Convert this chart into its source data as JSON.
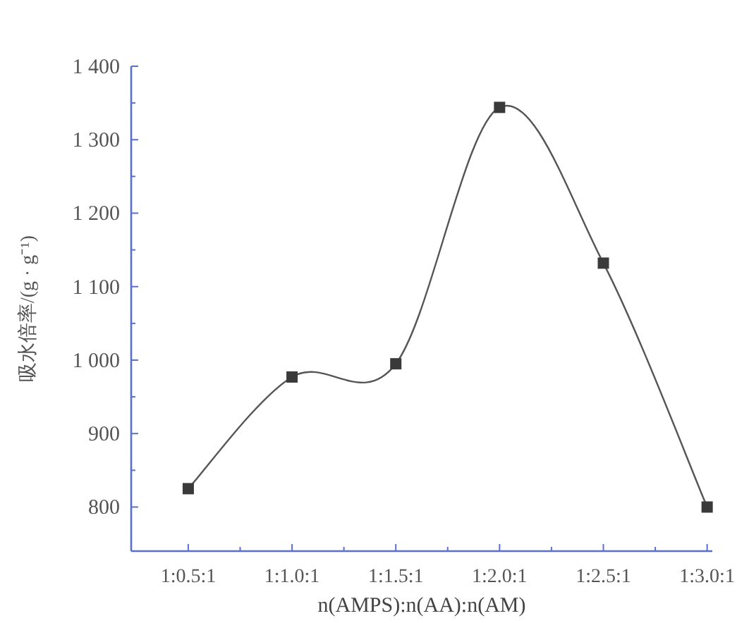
{
  "chart_data": {
    "type": "line",
    "xlabel": "n(AMPS):n(AA):n(AM)",
    "ylabel": "吸水倍率/(g · g⁻¹)",
    "categories": [
      "1:0.5:1",
      "1:1.0:1",
      "1:1.5:1",
      "1:2.0:1",
      "1:2.5:1",
      "1:3.0:1"
    ],
    "series": [
      {
        "color": "#555555",
        "values": [
          825,
          977,
          995,
          1344,
          1132,
          800
        ]
      }
    ],
    "ylim": [
      740,
      1400
    ],
    "yticks": [
      {
        "value": 800,
        "label": "800"
      },
      {
        "value": 850,
        "label": null
      },
      {
        "value": 900,
        "label": "900"
      },
      {
        "value": 950,
        "label": null
      },
      {
        "value": 1000,
        "label": "1 000"
      },
      {
        "value": 1050,
        "label": null
      },
      {
        "value": 1100,
        "label": "1 100"
      },
      {
        "value": 1150,
        "label": null
      },
      {
        "value": 1200,
        "label": "1 200"
      },
      {
        "value": 1250,
        "label": null
      },
      {
        "value": 1300,
        "label": "1 300"
      },
      {
        "value": 1350,
        "label": null
      },
      {
        "value": 1400,
        "label": "1 400"
      }
    ],
    "marker": "square",
    "line_style": "solid"
  }
}
